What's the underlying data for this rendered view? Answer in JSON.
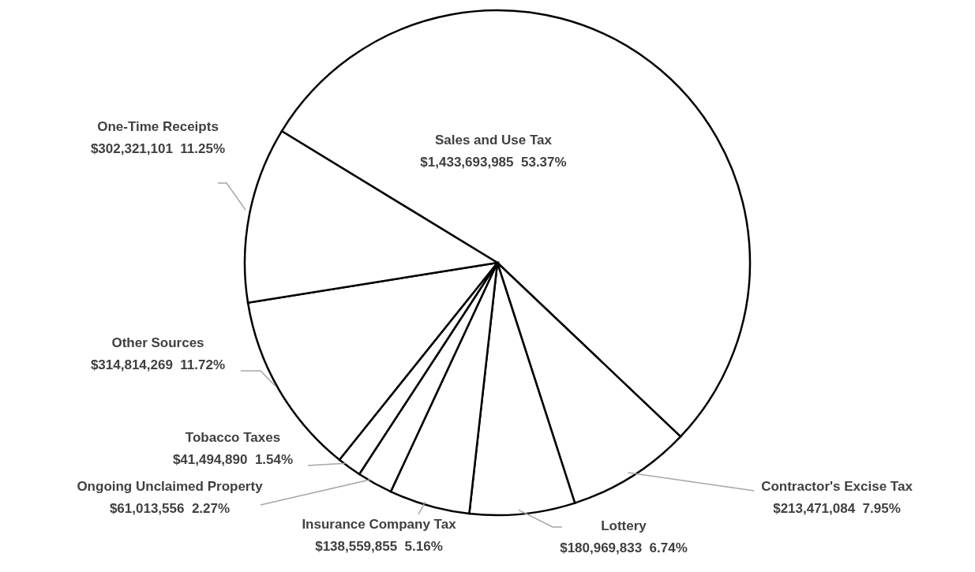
{
  "chart_data": {
    "type": "pie",
    "categories": [
      "Sales and Use Tax",
      "Contractor's Excise Tax",
      "Lottery",
      "Insurance Company Tax",
      "Ongoing Unclaimed Property",
      "Tobacco Taxes",
      "Other Sources",
      "One-Time Receipts"
    ],
    "values": [
      1433693985,
      213471084,
      180969833,
      138559855,
      61013556,
      41494890,
      314814269,
      302321101
    ],
    "value_labels": [
      "$1,433,693,985  53.37%",
      "$213,471,084  7.95%",
      "$180,969,833  6.74%",
      "$138,559,855  5.16%",
      "$61,013,556  2.27%",
      "$41,494,890  1.54%",
      "$314,814,269  11.72%",
      "$302,321,101  11.25%"
    ],
    "colors": [
      "#ffffff",
      "#ffffff",
      "#ffffff",
      "#ffffff",
      "#ffffff",
      "#ffffff",
      "#ffffff",
      "#ffffff"
    ]
  }
}
